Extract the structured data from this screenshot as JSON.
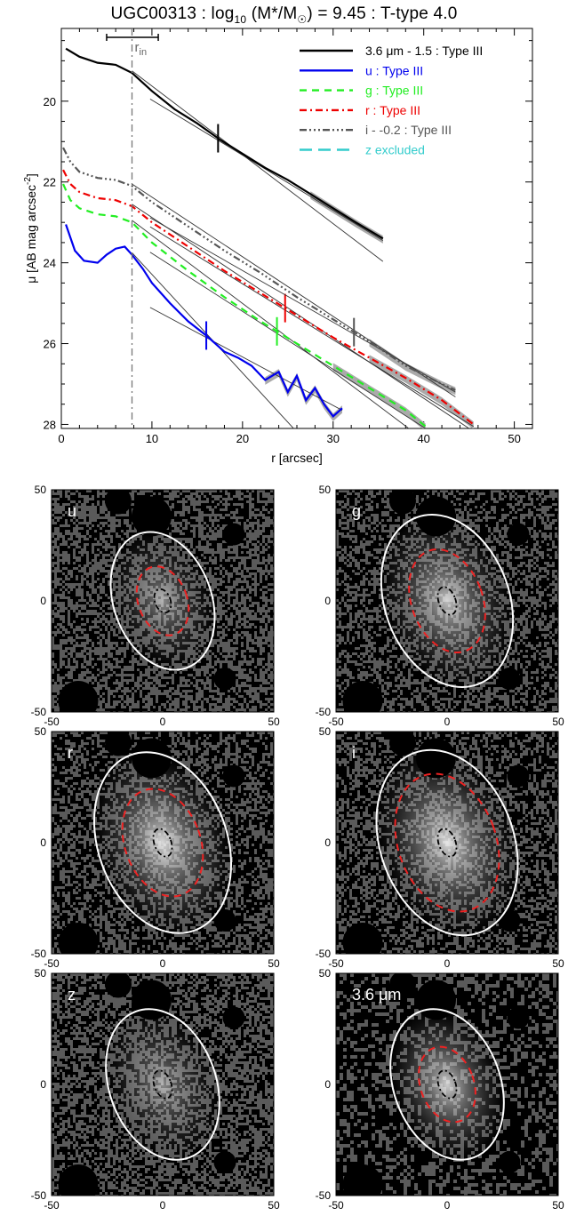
{
  "title": {
    "galaxy": "UGC00313",
    "sep1": " : log",
    "sub": "10",
    "mass": " (M*/M",
    "sun": "☉",
    "rest": ") = 9.45 : T-type 4.0"
  },
  "colors": {
    "3.6um": "#000000",
    "u": "#0000ee",
    "g": "#22ee22",
    "r": "#ee0000",
    "i": "#555555",
    "z": "#33cccc",
    "inner_ellipse": "#000000",
    "break_ellipse": "#ee2222",
    "outer_ellipse": "#ffffff"
  },
  "chart_data": [
    {
      "type": "line",
      "xlabel": "r [arcsec]",
      "ylabel": "μ [AB mag arcsec⁻²]",
      "xlim": [
        0,
        52
      ],
      "ylim": [
        28.1,
        18.2
      ],
      "xticks": [
        0,
        10,
        20,
        30,
        40,
        50
      ],
      "yticks": [
        20,
        22,
        24,
        26,
        28
      ],
      "r_in_label": "r",
      "r_in_sub": "in",
      "r_in": 7.8,
      "r_in_range": [
        5,
        10.7
      ],
      "legend_position": "top-right",
      "series": [
        {
          "name": "3.6 μm - 1.5 : Type III",
          "key": "3.6um",
          "dash": "solid",
          "text_color": "#000000",
          "x": [
            0.5,
            2,
            4,
            6,
            7.8,
            10,
            12.5,
            15,
            17.5,
            20,
            22.5,
            25,
            27.5,
            30,
            32.5,
            35.5
          ],
          "y": [
            18.7,
            18.9,
            19.05,
            19.1,
            19.3,
            19.75,
            20.2,
            20.55,
            20.95,
            21.3,
            21.65,
            21.95,
            22.3,
            22.65,
            23.0,
            23.4
          ],
          "break_r": 17.3
        },
        {
          "name": "u : Type III",
          "key": "u",
          "dash": "solid",
          "text_color": "#0000ee",
          "x": [
            0.5,
            1.5,
            2.5,
            4,
            5,
            6,
            7,
            7.8,
            9,
            10,
            12,
            14,
            16,
            18,
            19.5,
            21,
            22.5,
            24,
            25,
            26,
            27,
            28,
            29,
            30,
            31
          ],
          "y": [
            23.05,
            23.7,
            23.95,
            24.0,
            23.8,
            23.65,
            23.6,
            23.8,
            24.15,
            24.5,
            25.0,
            25.45,
            25.8,
            26.2,
            26.35,
            26.55,
            26.9,
            26.7,
            27.2,
            26.8,
            27.4,
            27.1,
            27.5,
            27.8,
            27.6
          ],
          "break_r": 16.0
        },
        {
          "name": "g : Type III",
          "key": "g",
          "dash": "dash",
          "text_color": "#22ee22",
          "x": [
            0.2,
            1,
            2,
            4,
            6,
            7.8,
            10,
            14,
            18,
            22,
            26,
            30,
            34,
            38,
            40.2
          ],
          "y": [
            22.05,
            22.45,
            22.65,
            22.8,
            22.85,
            23.0,
            23.5,
            24.2,
            24.85,
            25.45,
            26.0,
            26.55,
            27.1,
            27.65,
            28.05
          ],
          "break_r": 23.8
        },
        {
          "name": "r : Type III",
          "key": "r",
          "dash": "dashdot",
          "text_color": "#ee0000",
          "x": [
            0.2,
            1,
            2,
            4,
            6,
            7.8,
            10,
            14,
            18,
            22,
            26,
            30,
            34,
            38,
            42,
            45.5
          ],
          "y": [
            21.7,
            22.05,
            22.25,
            22.4,
            22.45,
            22.6,
            23.0,
            23.6,
            24.2,
            24.75,
            25.3,
            25.85,
            26.35,
            26.85,
            27.4,
            28.0
          ],
          "break_r": 24.7
        },
        {
          "name": "i - -0.2 : Type III",
          "key": "i",
          "dash": "dashdotdotdot",
          "text_color": "#555555",
          "x": [
            0.2,
            1,
            2,
            4,
            6,
            7.8,
            10,
            14,
            18,
            22,
            26,
            30,
            34,
            38,
            42,
            43.5
          ],
          "y": [
            21.15,
            21.5,
            21.75,
            21.9,
            21.95,
            22.1,
            22.5,
            23.1,
            23.7,
            24.25,
            24.85,
            25.4,
            25.95,
            26.55,
            27.0,
            27.15
          ],
          "break_r": 32.3
        },
        {
          "name": "z excluded",
          "key": "z",
          "dash": "longdash",
          "text_color": "#33cccc",
          "x": [],
          "y": [],
          "break_r": null
        }
      ]
    },
    {
      "type": "heatmap",
      "panels": [
        {
          "label": "u",
          "inner_ellipse": {
            "a": 5.5,
            "b": 3.5
          },
          "break_ellipse": {
            "a": 16,
            "b": 11
          },
          "outer_ellipse": {
            "a": 32,
            "b": 22
          },
          "mask": "high",
          "brightness": 0.55
        },
        {
          "label": "g",
          "inner_ellipse": {
            "a": 6.5,
            "b": 3.8
          },
          "break_ellipse": {
            "a": 24,
            "b": 16
          },
          "outer_ellipse": {
            "a": 40,
            "b": 28
          },
          "mask": "med",
          "brightness": 0.75
        },
        {
          "label": "r",
          "inner_ellipse": {
            "a": 6.5,
            "b": 3.8
          },
          "break_ellipse": {
            "a": 25,
            "b": 17
          },
          "outer_ellipse": {
            "a": 42,
            "b": 29
          },
          "mask": "med",
          "brightness": 0.85
        },
        {
          "label": "i",
          "inner_ellipse": {
            "a": 6.5,
            "b": 3.8
          },
          "break_ellipse": {
            "a": 32,
            "b": 22
          },
          "outer_ellipse": {
            "a": 43,
            "b": 30
          },
          "mask": "med",
          "brightness": 0.85
        },
        {
          "label": "z",
          "inner_ellipse": {
            "a": 6.5,
            "b": 3.8
          },
          "break_ellipse": null,
          "outer_ellipse": {
            "a": 35,
            "b": 24
          },
          "mask": "high",
          "brightness": 0.55
        },
        {
          "label": "3.6 μm",
          "inner_ellipse": {
            "a": 6.5,
            "b": 3.8
          },
          "break_ellipse": {
            "a": 17.5,
            "b": 12
          },
          "outer_ellipse": {
            "a": 35,
            "b": 24
          },
          "mask": "low",
          "brightness": 0.8
        }
      ],
      "xlim": [
        -50,
        50
      ],
      "ylim": [
        -50,
        50
      ],
      "ticks": [
        "-50",
        "0",
        "50"
      ]
    }
  ]
}
